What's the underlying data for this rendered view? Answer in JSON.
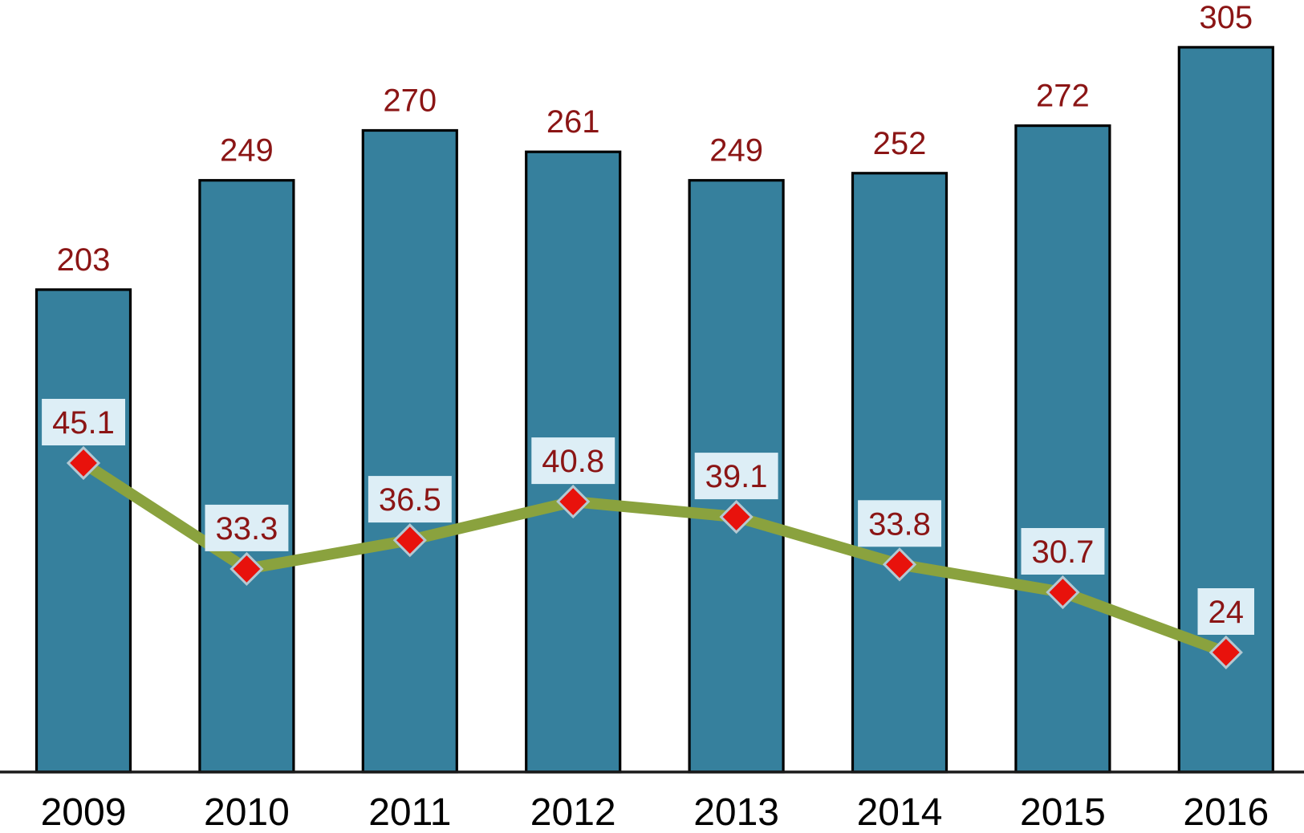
{
  "chart_data": {
    "type": "bar",
    "subtype": "bar+line combo",
    "categories": [
      "2009",
      "2010",
      "2011",
      "2012",
      "2013",
      "2014",
      "2015",
      "2016"
    ],
    "series": [
      {
        "name": "bar-series",
        "type": "bar",
        "values": [
          203,
          249,
          270,
          261,
          249,
          252,
          272,
          305
        ],
        "bar_color": "#36809D",
        "bar_border_color": "#000000",
        "value_label_color": "#8B1515"
      },
      {
        "name": "line-series",
        "type": "line",
        "values": [
          45.1,
          33.3,
          36.5,
          40.8,
          39.1,
          33.8,
          30.7,
          24
        ],
        "line_color": "#8AA23E",
        "marker_shape": "diamond",
        "marker_color": "#E8120C",
        "marker_border_color": "#B4C8D2",
        "value_label_color": "#8B1515",
        "value_label_bg": "#DDEEF6"
      }
    ],
    "title": "",
    "xlabel": "",
    "ylabel": "",
    "x_tick_label_color": "#000000",
    "axis_line_color": "#1A1A1A",
    "background_color": "#FFFFFF",
    "grid": false,
    "legend": false,
    "y_axis_visible": false,
    "bar_value_labels_position": "above bar",
    "line_value_labels_position": "boxed above marker"
  }
}
